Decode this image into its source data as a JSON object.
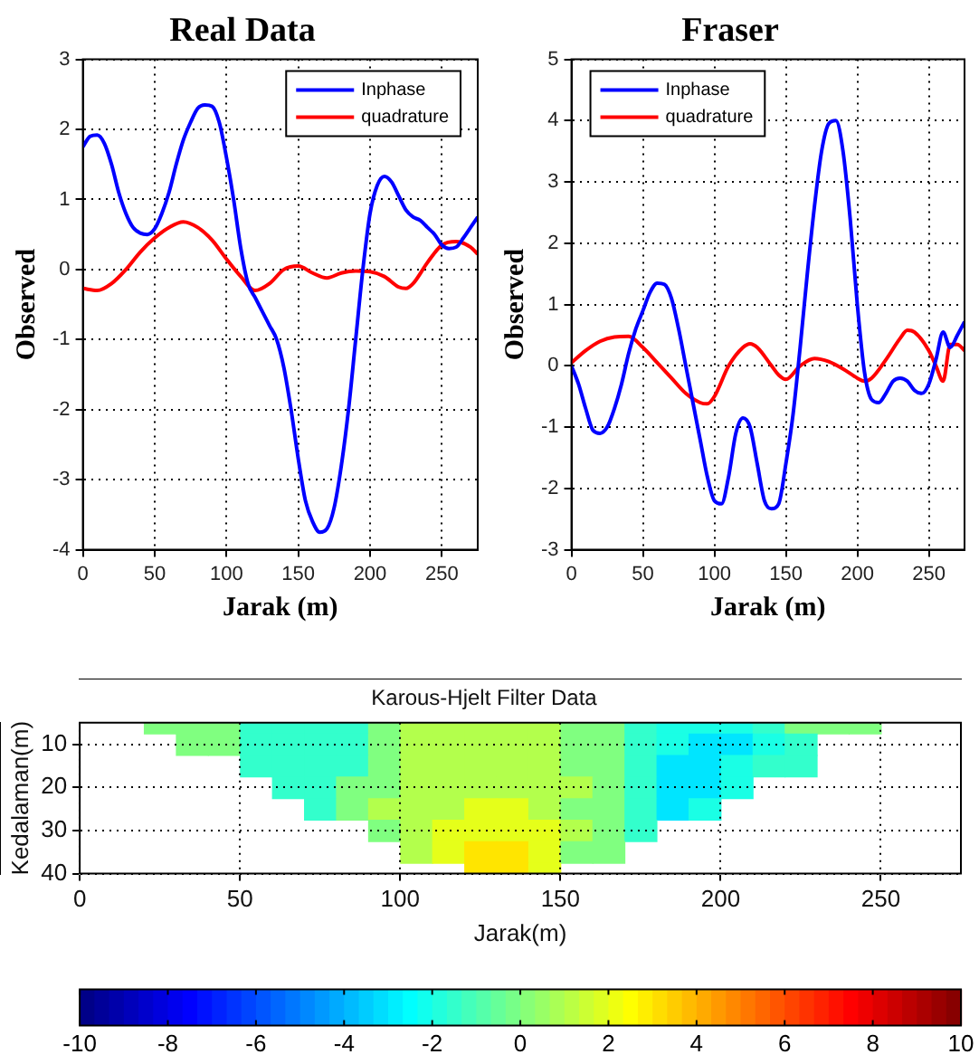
{
  "chart_data": [
    {
      "type": "line",
      "title": "Real Data",
      "xlabel": "Jarak (m)",
      "ylabel": "Observed",
      "xlim": [
        0,
        275
      ],
      "xticks": [
        0,
        50,
        100,
        150,
        200,
        250
      ],
      "ylim": [
        -4,
        3
      ],
      "yticks": [
        -4,
        -3,
        -2,
        -1,
        0,
        1,
        2,
        3
      ],
      "grid": true,
      "legend": "top right",
      "series": [
        {
          "name": "Inphase",
          "color": "#0000ff",
          "x": [
            0,
            5,
            10,
            15,
            20,
            25,
            30,
            35,
            40,
            45,
            50,
            55,
            60,
            65,
            70,
            75,
            80,
            85,
            90,
            95,
            100,
            105,
            110,
            115,
            120,
            125,
            130,
            135,
            140,
            145,
            150,
            155,
            160,
            165,
            170,
            175,
            180,
            185,
            190,
            195,
            200,
            205,
            210,
            215,
            220,
            225,
            230,
            235,
            240,
            245,
            250,
            255,
            260,
            265,
            270,
            275
          ],
          "values": [
            1.75,
            1.9,
            1.92,
            1.8,
            1.5,
            1.1,
            0.8,
            0.6,
            0.52,
            0.5,
            0.58,
            0.8,
            1.1,
            1.5,
            1.85,
            2.1,
            2.3,
            2.35,
            2.33,
            2.1,
            1.6,
            1.0,
            0.3,
            -0.2,
            -0.4,
            -0.6,
            -0.8,
            -1.0,
            -1.4,
            -2.0,
            -2.7,
            -3.3,
            -3.6,
            -3.75,
            -3.7,
            -3.4,
            -2.8,
            -2.0,
            -1.0,
            0.0,
            0.8,
            1.2,
            1.33,
            1.25,
            1.05,
            0.85,
            0.75,
            0.7,
            0.6,
            0.5,
            0.35,
            0.3,
            0.32,
            0.45,
            0.6,
            0.75
          ]
        },
        {
          "name": "quadrature",
          "color": "#ff0000",
          "x": [
            0,
            10,
            20,
            30,
            40,
            50,
            60,
            70,
            80,
            90,
            100,
            110,
            120,
            130,
            140,
            150,
            160,
            170,
            180,
            190,
            200,
            210,
            220,
            225,
            230,
            240,
            250,
            260,
            270,
            275
          ],
          "values": [
            -0.27,
            -0.3,
            -0.2,
            0.0,
            0.25,
            0.45,
            0.6,
            0.68,
            0.6,
            0.42,
            0.15,
            -0.1,
            -0.3,
            -0.2,
            0.0,
            0.05,
            -0.05,
            -0.12,
            -0.05,
            -0.02,
            -0.03,
            -0.1,
            -0.25,
            -0.27,
            -0.2,
            0.1,
            0.35,
            0.4,
            0.32,
            0.22
          ]
        }
      ]
    },
    {
      "type": "line",
      "title": "Fraser",
      "xlabel": "Jarak (m)",
      "ylabel": "Observed",
      "xlim": [
        0,
        275
      ],
      "xticks": [
        0,
        50,
        100,
        150,
        200,
        250
      ],
      "ylim": [
        -3,
        5
      ],
      "yticks": [
        -3,
        -2,
        -1,
        0,
        1,
        2,
        3,
        4,
        5
      ],
      "grid": true,
      "legend": "top left",
      "series": [
        {
          "name": "Inphase",
          "color": "#0000ff",
          "x": [
            0,
            5,
            10,
            15,
            20,
            25,
            30,
            35,
            40,
            45,
            50,
            55,
            60,
            65,
            70,
            75,
            80,
            85,
            90,
            95,
            100,
            105,
            110,
            115,
            120,
            125,
            130,
            135,
            140,
            145,
            150,
            155,
            160,
            165,
            170,
            175,
            180,
            185,
            190,
            195,
            200,
            205,
            210,
            215,
            220,
            225,
            230,
            235,
            240,
            245,
            250,
            255,
            260,
            265,
            270,
            275
          ],
          "values": [
            0.0,
            -0.3,
            -0.7,
            -1.05,
            -1.1,
            -1.0,
            -0.7,
            -0.3,
            0.2,
            0.6,
            0.9,
            1.2,
            1.35,
            1.33,
            1.1,
            0.6,
            0.0,
            -0.6,
            -1.2,
            -1.8,
            -2.2,
            -2.25,
            -1.8,
            -1.1,
            -0.85,
            -1.0,
            -1.6,
            -2.2,
            -2.33,
            -2.25,
            -1.6,
            -0.8,
            0.3,
            1.5,
            2.6,
            3.5,
            3.95,
            4.0,
            3.5,
            2.4,
            1.0,
            -0.1,
            -0.55,
            -0.6,
            -0.45,
            -0.25,
            -0.2,
            -0.25,
            -0.4,
            -0.45,
            -0.3,
            0.1,
            0.55,
            0.3,
            0.5,
            0.72
          ]
        },
        {
          "name": "quadrature",
          "color": "#ff0000",
          "x": [
            0,
            10,
            20,
            30,
            40,
            50,
            60,
            70,
            80,
            90,
            95,
            100,
            110,
            120,
            125,
            130,
            140,
            145,
            150,
            160,
            170,
            180,
            190,
            200,
            205,
            210,
            220,
            230,
            235,
            240,
            250,
            255,
            260,
            265,
            270,
            275
          ],
          "values": [
            0.05,
            0.25,
            0.4,
            0.47,
            0.48,
            0.3,
            0.05,
            -0.2,
            -0.45,
            -0.6,
            -0.62,
            -0.5,
            0.0,
            0.3,
            0.36,
            0.3,
            0.0,
            -0.15,
            -0.22,
            0.0,
            0.12,
            0.07,
            -0.05,
            -0.2,
            -0.25,
            -0.2,
            0.1,
            0.45,
            0.58,
            0.55,
            0.25,
            0.0,
            -0.25,
            0.35,
            0.35,
            0.25
          ]
        }
      ]
    },
    {
      "type": "heatmap",
      "title": "Karous-Hjelt Filter Data",
      "xlabel": "Jarak(m)",
      "ylabel": "Kedalaman(m)",
      "xlim": [
        0,
        275
      ],
      "xticks": [
        0,
        50,
        100,
        150,
        200,
        250
      ],
      "ylim": [
        40,
        5
      ],
      "yticks": [
        10,
        20,
        30,
        40
      ],
      "grid": true,
      "clim": [
        -10,
        10
      ],
      "cticks": [
        -10,
        -8,
        -6,
        -4,
        -2,
        0,
        2,
        4,
        6,
        8,
        10
      ],
      "x": [
        25,
        35,
        45,
        55,
        65,
        75,
        85,
        95,
        105,
        115,
        125,
        135,
        145,
        155,
        165,
        175,
        185,
        195,
        205,
        215,
        225,
        235,
        245
      ],
      "y": [
        5,
        10,
        15,
        20,
        25,
        30,
        35,
        40
      ],
      "cells": [
        [
          0,
          0,
          0,
          -1.5,
          -1.5,
          -1.5,
          -1.5,
          0,
          1,
          1,
          1,
          1,
          1,
          0,
          0,
          -1.5,
          -2,
          -2,
          -2,
          -1.5,
          0,
          0,
          0
        ],
        [
          null,
          0,
          0,
          -1.5,
          -1.5,
          -1.5,
          -1.5,
          0,
          1,
          1,
          1,
          1,
          1,
          0,
          0,
          -1.5,
          -2,
          -3,
          -3,
          -2,
          -1.5,
          null,
          null
        ],
        [
          null,
          null,
          null,
          -1.5,
          -1.5,
          -1.5,
          -1.5,
          0,
          1,
          1,
          1,
          1,
          1,
          0,
          0,
          -1.5,
          -3,
          -3,
          -2,
          -1.5,
          -1.5,
          null,
          null
        ],
        [
          null,
          null,
          null,
          null,
          -1.5,
          -1.5,
          0,
          0,
          1,
          1,
          1,
          1,
          1,
          1,
          0,
          -1.5,
          -3,
          -3,
          -2,
          null,
          null,
          null,
          null
        ],
        [
          null,
          null,
          null,
          null,
          null,
          -1.5,
          0,
          1,
          1,
          1,
          2,
          2,
          1,
          0,
          0,
          -1.5,
          -3,
          -2,
          null,
          null,
          null,
          null,
          null
        ],
        [
          null,
          null,
          null,
          null,
          null,
          null,
          null,
          0,
          1,
          2,
          2,
          2,
          2,
          1,
          0,
          -1.5,
          null,
          null,
          null,
          null,
          null,
          null,
          null
        ],
        [
          null,
          null,
          null,
          null,
          null,
          null,
          null,
          null,
          1,
          2,
          3,
          3,
          2,
          0,
          0,
          null,
          null,
          null,
          null,
          null,
          null,
          null,
          null
        ],
        [
          null,
          null,
          null,
          null,
          null,
          null,
          null,
          null,
          null,
          null,
          3,
          3,
          2,
          null,
          null,
          null,
          null,
          null,
          null,
          null,
          null,
          null,
          null
        ]
      ]
    }
  ]
}
